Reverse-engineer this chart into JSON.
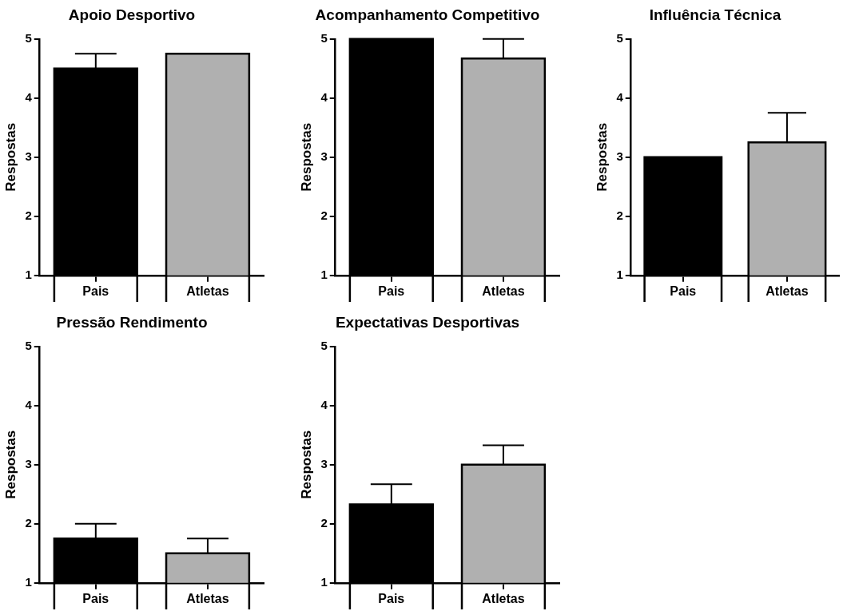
{
  "chart_data": [
    {
      "type": "bar",
      "title": "Apoio Desportivo",
      "ylabel": "Respostas",
      "categories": [
        "Pais",
        "Atletas"
      ],
      "values": [
        4.5,
        4.75
      ],
      "colors": [
        "#000000",
        "#b0b0b0"
      ],
      "errors": [
        [
          4.5,
          4.75
        ],
        null
      ],
      "ylim": [
        1,
        5
      ],
      "yticks": [
        1,
        2,
        3,
        4,
        5
      ],
      "grid": false,
      "legend": false
    },
    {
      "type": "bar",
      "title": "Acompanhamento Competitivo",
      "ylabel": "Respostas",
      "categories": [
        "Pais",
        "Atletas"
      ],
      "values": [
        5,
        4.67
      ],
      "colors": [
        "#000000",
        "#b0b0b0"
      ],
      "errors": [
        null,
        [
          4.67,
          5
        ]
      ],
      "ylim": [
        1,
        5
      ],
      "yticks": [
        1,
        2,
        3,
        4,
        5
      ],
      "grid": false,
      "legend": false
    },
    {
      "type": "bar",
      "title": "Influência Técnica",
      "ylabel": "Respostas",
      "categories": [
        "Pais",
        "Atletas"
      ],
      "values": [
        3,
        3.25
      ],
      "colors": [
        "#000000",
        "#b0b0b0"
      ],
      "errors": [
        null,
        [
          3.25,
          3.75
        ]
      ],
      "ylim": [
        1,
        5
      ],
      "yticks": [
        1,
        2,
        3,
        4,
        5
      ],
      "grid": false,
      "legend": false
    },
    {
      "type": "bar",
      "title": "Pressão Rendimento",
      "ylabel": "Respostas",
      "categories": [
        "Pais",
        "Atletas"
      ],
      "values": [
        1.75,
        1.5
      ],
      "colors": [
        "#000000",
        "#b0b0b0"
      ],
      "errors": [
        [
          1.75,
          2
        ],
        [
          1.5,
          1.75
        ]
      ],
      "ylim": [
        1,
        5
      ],
      "yticks": [
        1,
        2,
        3,
        4,
        5
      ],
      "grid": false,
      "legend": false
    },
    {
      "type": "bar",
      "title": "Expectativas Desportivas",
      "ylabel": "Respostas",
      "categories": [
        "Pais",
        "Atletas"
      ],
      "values": [
        2.33,
        3
      ],
      "colors": [
        "#000000",
        "#b0b0b0"
      ],
      "errors": [
        [
          2.33,
          2.67
        ],
        [
          3,
          3.33
        ]
      ],
      "ylim": [
        1,
        5
      ],
      "yticks": [
        1,
        2,
        3,
        4,
        5
      ],
      "grid": false,
      "legend": false
    }
  ]
}
